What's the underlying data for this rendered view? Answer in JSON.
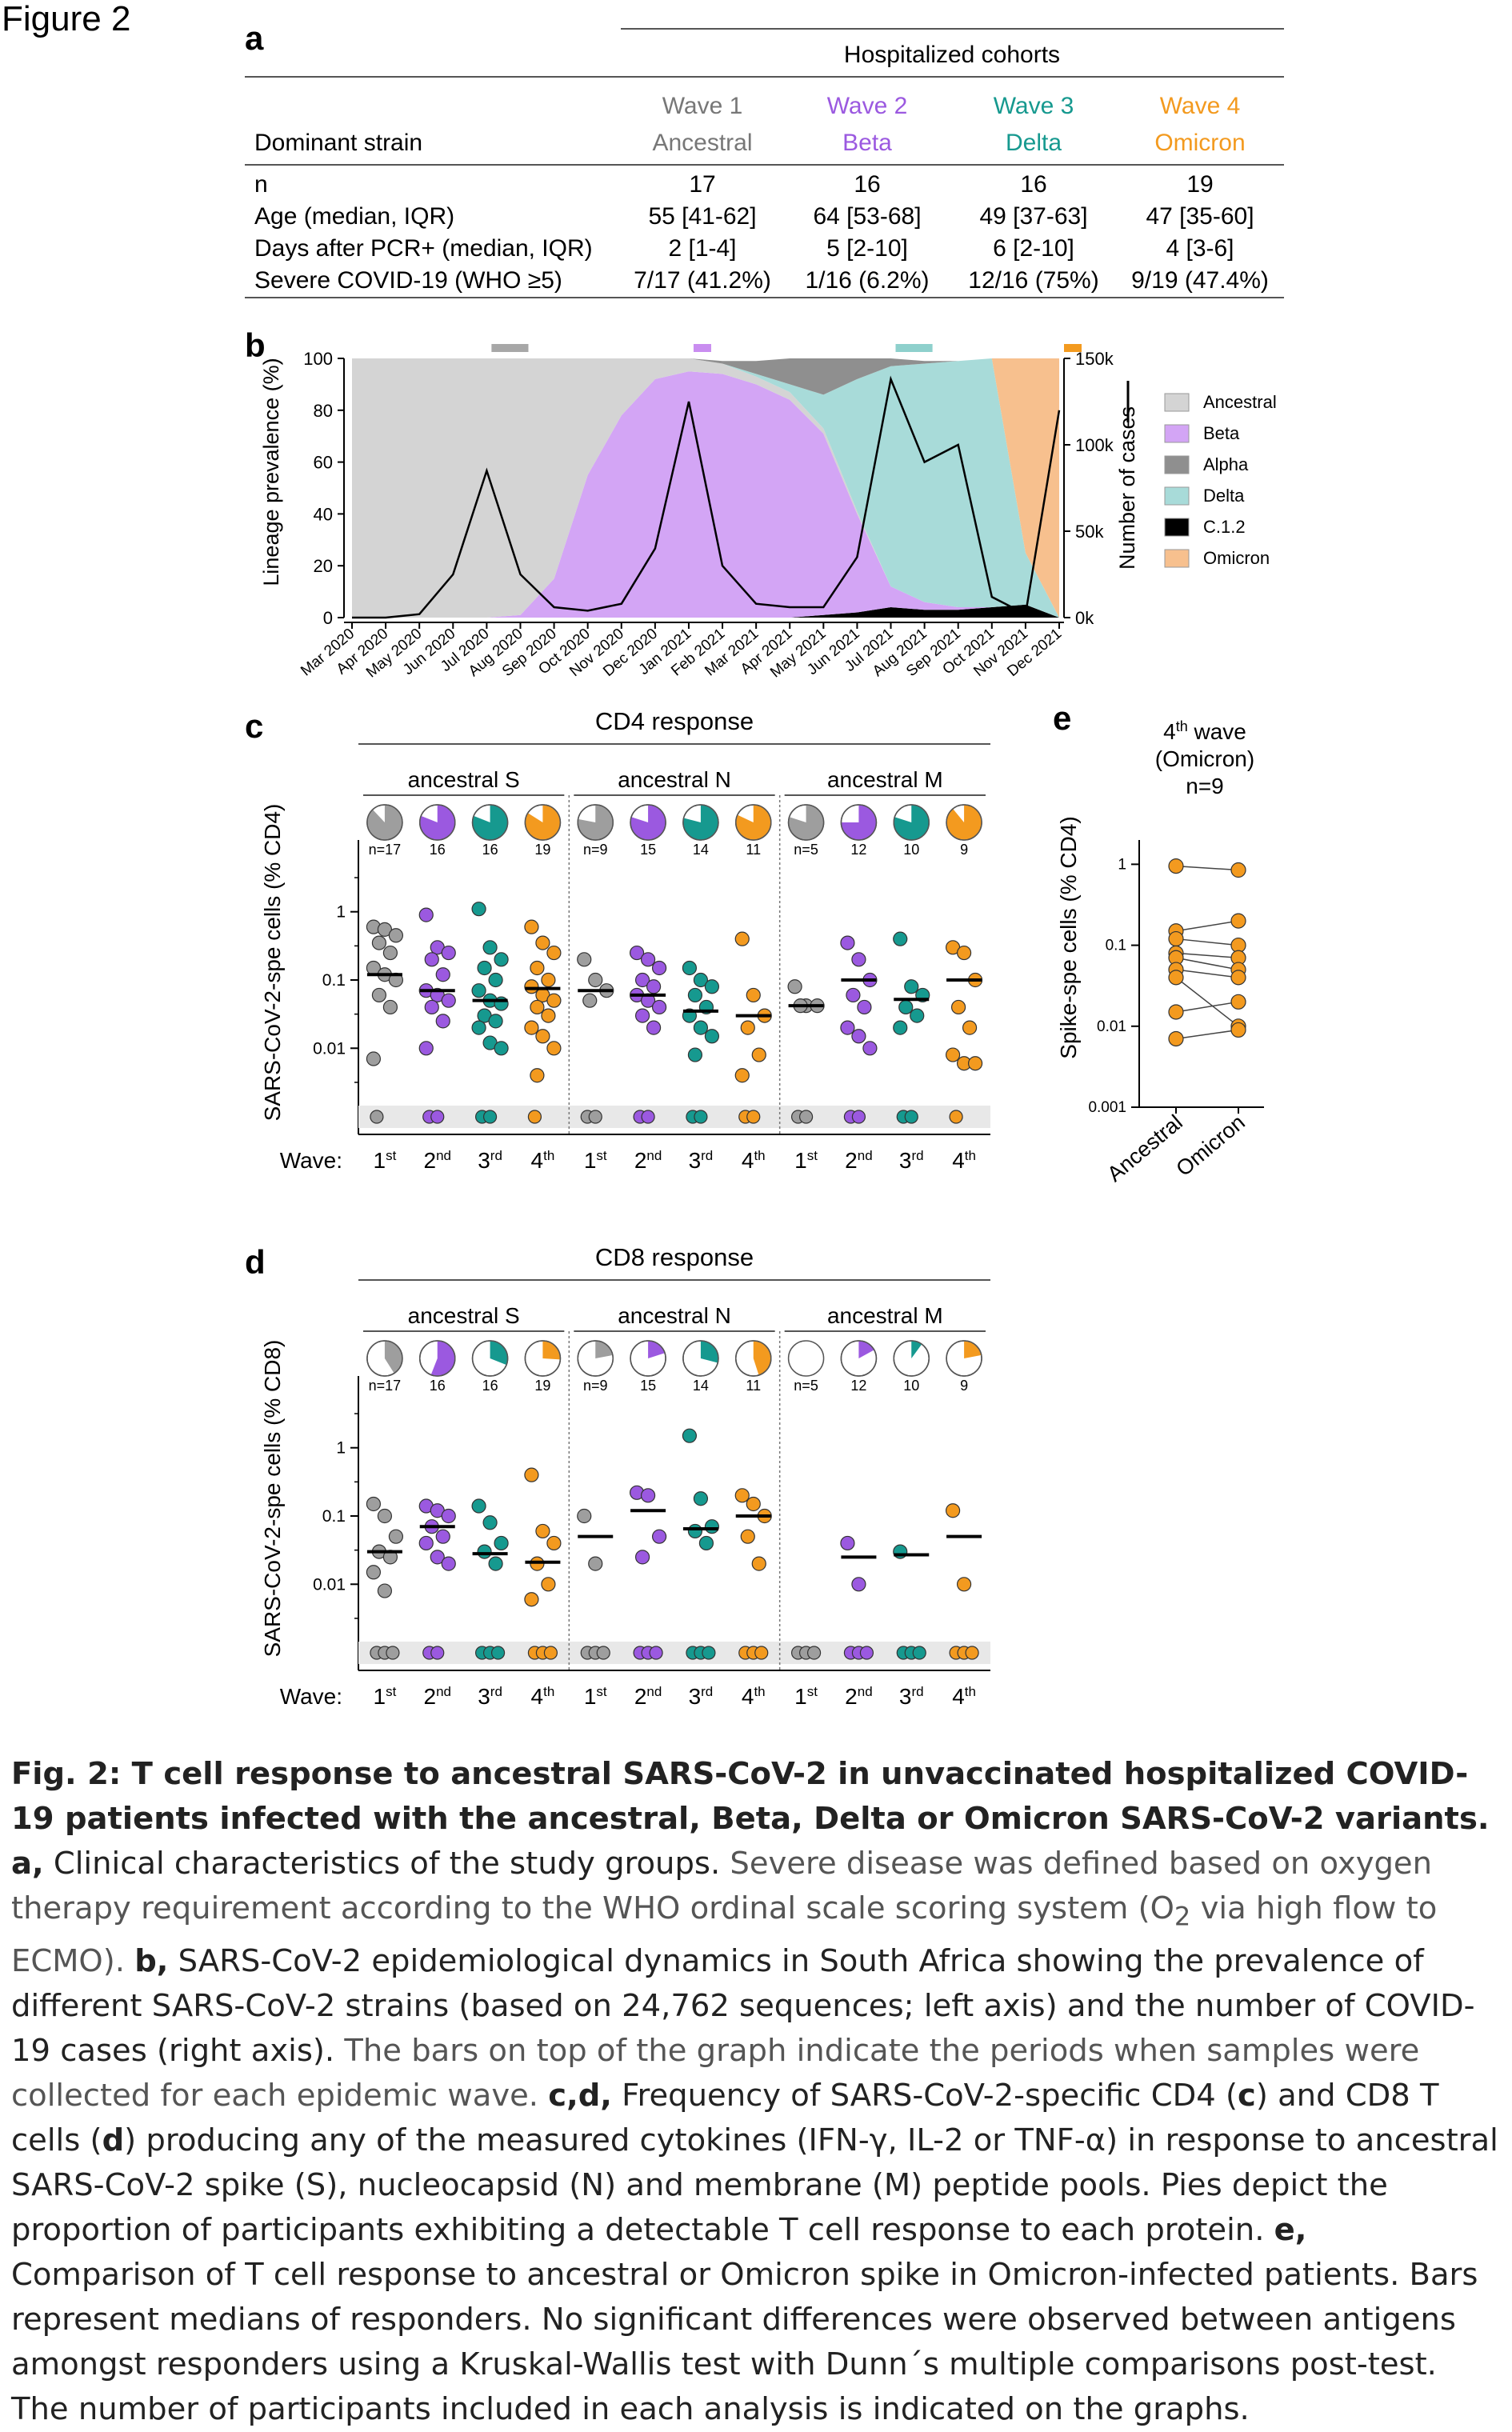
{
  "figure_label": "Figure 2",
  "colors": {
    "wave1": "#9e9e9e",
    "wave2": "#9b59e0",
    "wave3": "#16998f",
    "wave4": "#f39a1f"
  },
  "panel_a": {
    "label": "a",
    "header": "Hospitalized cohorts",
    "row_header_label": "Dominant strain",
    "columns": [
      {
        "wave": "Wave 1",
        "strain": "Ancestral"
      },
      {
        "wave": "Wave 2",
        "strain": "Beta"
      },
      {
        "wave": "Wave 3",
        "strain": "Delta"
      },
      {
        "wave": "Wave 4",
        "strain": "Omicron"
      }
    ],
    "rows": [
      {
        "label": "n",
        "values": [
          "17",
          "16",
          "16",
          "19"
        ]
      },
      {
        "label": "Age (median, IQR)",
        "values": [
          "55 [41-62]",
          "64 [53-68]",
          "49 [37-63]",
          "47 [35-60]"
        ]
      },
      {
        "label": "Days after PCR+ (median, IQR)",
        "values": [
          "2 [1-4]",
          "5 [2-10]",
          "6 [2-10]",
          "4 [3-6]"
        ]
      },
      {
        "label": "Severe COVID-19 (WHO ≥5)",
        "values": [
          "7/17 (41.2%)",
          "1/16 (6.2%)",
          "12/16 (75%)",
          "9/19 (47.4%)"
        ]
      }
    ]
  },
  "chart_data": [
    {
      "panel": "b",
      "type": "area",
      "ylabel": "Lineage prevalence (%)",
      "y2label": "Number of cases",
      "ylim": [
        0,
        100
      ],
      "yticks": [
        "0",
        "20",
        "40",
        "60",
        "80",
        "100"
      ],
      "y2lim": [
        0,
        150000
      ],
      "y2ticks": [
        "0k",
        "50k",
        "100k",
        "150k"
      ],
      "x": [
        "Mar 2020",
        "Apr 2020",
        "May 2020",
        "Jun 2020",
        "Jul 2020",
        "Aug 2020",
        "Sep 2020",
        "Oct 2020",
        "Nov 2020",
        "Dec 2020",
        "Jan 2021",
        "Feb 2021",
        "Mar 2021",
        "Apr 2021",
        "May 2021",
        "Jun 2021",
        "Jul 2021",
        "Aug 2021",
        "Sep 2021",
        "Oct 2021",
        "Nov 2021",
        "Dec 2021"
      ],
      "series": [
        {
          "name": "Ancestral",
          "color": "#d4d4d4",
          "values": [
            100,
            100,
            100,
            100,
            100,
            99,
            85,
            45,
            22,
            8,
            5,
            4,
            3,
            3,
            2,
            1,
            0,
            0,
            0,
            0,
            0,
            0
          ]
        },
        {
          "name": "Beta",
          "color": "#d3a5f5",
          "values": [
            0,
            0,
            0,
            0,
            0,
            1,
            15,
            55,
            78,
            92,
            95,
            94,
            90,
            84,
            70,
            38,
            8,
            3,
            1,
            0,
            0,
            0
          ]
        },
        {
          "name": "Alpha",
          "color": "#8f8f8f",
          "values": [
            0,
            0,
            0,
            0,
            0,
            0,
            0,
            0,
            0,
            0,
            0,
            1,
            5,
            10,
            14,
            8,
            3,
            1,
            0,
            0,
            0,
            0
          ]
        },
        {
          "name": "Delta",
          "color": "#a8dbd9",
          "values": [
            0,
            0,
            0,
            0,
            0,
            0,
            0,
            0,
            0,
            0,
            0,
            0,
            1,
            3,
            13,
            51,
            85,
            92,
            95,
            96,
            20,
            0
          ]
        },
        {
          "name": "C.1.2",
          "color": "#000000",
          "values": [
            0,
            0,
            0,
            0,
            0,
            0,
            0,
            0,
            0,
            0,
            0,
            0,
            0,
            0,
            1,
            2,
            4,
            3,
            3,
            4,
            5,
            0
          ]
        },
        {
          "name": "Omicron",
          "color": "#f7c08e",
          "values": [
            0,
            0,
            0,
            0,
            0,
            0,
            0,
            0,
            0,
            0,
            0,
            0,
            0,
            0,
            0,
            0,
            0,
            0,
            0,
            0,
            75,
            100
          ]
        }
      ],
      "cases": {
        "name": "Number of cases",
        "values": [
          0,
          0,
          2000,
          25000,
          85000,
          25000,
          6000,
          4000,
          8000,
          40000,
          125000,
          30000,
          8000,
          6000,
          6000,
          35000,
          138000,
          90000,
          100000,
          12000,
          2000,
          120000
        ]
      },
      "sample_periods": [
        {
          "wave": "Wave 1",
          "start": "Jul 2020",
          "end": "Aug 2020",
          "color": "#a7a7a7"
        },
        {
          "wave": "Wave 2",
          "start": "Jan 2021",
          "end": "Jan 2021",
          "color": "#c98df0"
        },
        {
          "wave": "Wave 3",
          "start": "Jul 2021",
          "end": "Aug 2021",
          "color": "#8ed0cc"
        },
        {
          "wave": "Wave 4",
          "start": "Dec 2021",
          "end": "Dec 2021",
          "color": "#f39a1f"
        }
      ]
    },
    {
      "panel": "c",
      "type": "scatter",
      "title": "CD4 response",
      "ylabel": "SARS-CoV-2-spe cells (% CD4)",
      "yscale": "log",
      "yticks": [
        "1",
        "0.1",
        "0.01"
      ],
      "xlabel_prefix": "Wave:",
      "x_ticks": [
        "1st",
        "2nd",
        "3rd",
        "4th"
      ],
      "groups": [
        {
          "antigen": "ancestral S",
          "n": [
            "n=17",
            "16",
            "16",
            "19"
          ],
          "responder_fraction": [
            0.88,
            0.81,
            0.81,
            0.84
          ],
          "medians": [
            0.12,
            0.07,
            0.05,
            0.075
          ],
          "values": [
            [
              0.6,
              0.55,
              0.45,
              0.35,
              0.25,
              0.15,
              0.12,
              0.1,
              0.06,
              0.04,
              0.007
            ],
            [
              0.9,
              0.3,
              0.25,
              0.2,
              0.12,
              0.07,
              0.06,
              0.05,
              0.04,
              0.025,
              0.01
            ],
            [
              1.1,
              0.3,
              0.2,
              0.15,
              0.1,
              0.07,
              0.05,
              0.045,
              0.03,
              0.025,
              0.02,
              0.012,
              0.01
            ],
            [
              0.6,
              0.35,
              0.25,
              0.15,
              0.1,
              0.08,
              0.06,
              0.05,
              0.04,
              0.03,
              0.02,
              0.015,
              0.01,
              0.004
            ]
          ]
        },
        {
          "antigen": "ancestral N",
          "n": [
            "n=9",
            "15",
            "14",
            "11"
          ],
          "responder_fraction": [
            0.78,
            0.8,
            0.79,
            0.82
          ],
          "medians": [
            0.07,
            0.06,
            0.035,
            0.03
          ],
          "values": [
            [
              0.2,
              0.1,
              0.07,
              0.05
            ],
            [
              0.25,
              0.2,
              0.15,
              0.1,
              0.08,
              0.06,
              0.05,
              0.04,
              0.03,
              0.02
            ],
            [
              0.15,
              0.1,
              0.08,
              0.06,
              0.04,
              0.03,
              0.02,
              0.015,
              0.008
            ],
            [
              0.4,
              0.06,
              0.03,
              0.02,
              0.008,
              0.004
            ]
          ]
        },
        {
          "antigen": "ancestral M",
          "n": [
            "n=5",
            "12",
            "10",
            "9"
          ],
          "responder_fraction": [
            0.8,
            0.75,
            0.8,
            0.89
          ],
          "medians": [
            0.042,
            0.1,
            0.052,
            0.1
          ],
          "values": [
            [
              0.08,
              0.042,
              0.042,
              0.042
            ],
            [
              0.35,
              0.2,
              0.1,
              0.06,
              0.04,
              0.02,
              0.015,
              0.01
            ],
            [
              0.4,
              0.08,
              0.06,
              0.04,
              0.03,
              0.02
            ],
            [
              0.3,
              0.25,
              0.1,
              0.04,
              0.02,
              0.008,
              0.006,
              0.006
            ]
          ]
        }
      ]
    },
    {
      "panel": "d",
      "type": "scatter",
      "title": "CD8 response",
      "ylabel": "SARS-CoV-2-spe cells (% CD8)",
      "yscale": "log",
      "yticks": [
        "1",
        "0.1",
        "0.01"
      ],
      "xlabel_prefix": "Wave:",
      "x_ticks": [
        "1st",
        "2nd",
        "3rd",
        "4th"
      ],
      "groups": [
        {
          "antigen": "ancestral S",
          "n": [
            "n=17",
            "16",
            "16",
            "19"
          ],
          "responder_fraction": [
            0.41,
            0.56,
            0.31,
            0.26
          ],
          "medians": [
            0.03,
            0.07,
            0.028,
            0.021
          ],
          "values": [
            [
              0.15,
              0.1,
              0.05,
              0.03,
              0.025,
              0.015,
              0.008
            ],
            [
              0.14,
              0.12,
              0.1,
              0.07,
              0.05,
              0.04,
              0.025,
              0.02
            ],
            [
              0.14,
              0.08,
              0.04,
              0.03,
              0.02
            ],
            [
              0.4,
              0.06,
              0.04,
              0.02,
              0.01,
              0.006
            ]
          ]
        },
        {
          "antigen": "ancestral N",
          "n": [
            "n=9",
            "15",
            "14",
            "11"
          ],
          "responder_fraction": [
            0.22,
            0.2,
            0.29,
            0.45
          ],
          "medians": [
            0.05,
            0.12,
            0.065,
            0.1
          ],
          "values": [
            [
              0.1,
              0.02
            ],
            [
              0.22,
              0.2,
              0.05,
              0.025
            ],
            [
              1.5,
              0.18,
              0.07,
              0.06,
              0.04
            ],
            [
              0.2,
              0.15,
              0.1,
              0.05,
              0.02
            ]
          ]
        },
        {
          "antigen": "ancestral M",
          "n": [
            "n=5",
            "12",
            "10",
            "9"
          ],
          "responder_fraction": [
            0,
            0.17,
            0.1,
            0.22
          ],
          "medians": [
            null,
            0.025,
            0.027,
            0.05
          ],
          "values": [
            [],
            [
              0.04,
              0.01
            ],
            [
              0.03
            ],
            [
              0.12,
              0.01
            ]
          ]
        }
      ]
    },
    {
      "panel": "e",
      "type": "scatter",
      "title_line1": "4",
      "title_sup": "th",
      "title_line1b": " wave",
      "title_line2": "(Omicron)",
      "title_line3": "n=9",
      "ylabel": "Spike-spe cells (% CD4)",
      "yscale": "log",
      "yticks": [
        "1",
        "0.1",
        "0.01",
        "0.001"
      ],
      "categories": [
        "Ancestral",
        "Omicron"
      ],
      "pairs": [
        [
          0.95,
          0.85
        ],
        [
          0.15,
          0.2
        ],
        [
          0.12,
          0.1
        ],
        [
          0.08,
          0.07
        ],
        [
          0.07,
          0.05
        ],
        [
          0.05,
          0.04
        ],
        [
          0.04,
          0.01
        ],
        [
          0.015,
          0.02
        ],
        [
          0.007,
          0.009
        ]
      ]
    }
  ],
  "panel_labels": {
    "b": "b",
    "c": "c",
    "d": "d",
    "e": "e"
  },
  "caption": {
    "title": "Fig. 2: T cell response to ancestral SARS-CoV-2 in unvaccinated hospitalized COVID-19 patients infected with the ancestral, Beta, Delta or Omicron SARS-CoV-2 variants.",
    "a_label": "a,",
    "a_text_1": " Clinical characteristics of the study groups. ",
    "a_text_2": "Severe disease was defined based on oxygen therapy requirement according to the WHO ordinal scale scoring system (O",
    "a_sub": "2",
    "a_text_3": " via high flow to ECMO). ",
    "b_label": "b,",
    "b_text": " SARS-CoV-2 epidemiological dynamics in South Africa showing the prevalence of different SARS-CoV-2 strains (based on 24,762 sequences; left axis) and the number of COVID-19 cases (right axis). ",
    "b_text_2": "The bars on top of the graph indicate the periods when samples were collected for each epidemic wave. ",
    "cd_label": "c,d,",
    "cd_text_1": " Frequency of SARS-CoV-2-specific CD4 (",
    "cd_c": "c",
    "cd_text_2": ") and CD8 T cells (",
    "cd_d": "d",
    "cd_text_3": ") producing any of the measured cytokines (IFN-γ, IL-2 or TNF-α) in response to ancestral SARS-CoV-2 spike (S), nucleocapsid (N) and membrane (M) peptide pools. Pies depict the proportion of participants exhibiting a detectable T cell response to each protein. ",
    "e_label": "e,",
    "e_text": " Comparison of T cell response to ancestral or Omicron spike in Omicron-infected patients. Bars represent medians of responders. No significant differences were observed between antigens amongst responders using a Kruskal-Wallis test with Dunn´s multiple comparisons post-test. The number of participants included in each analysis is indicated on the graphs."
  }
}
